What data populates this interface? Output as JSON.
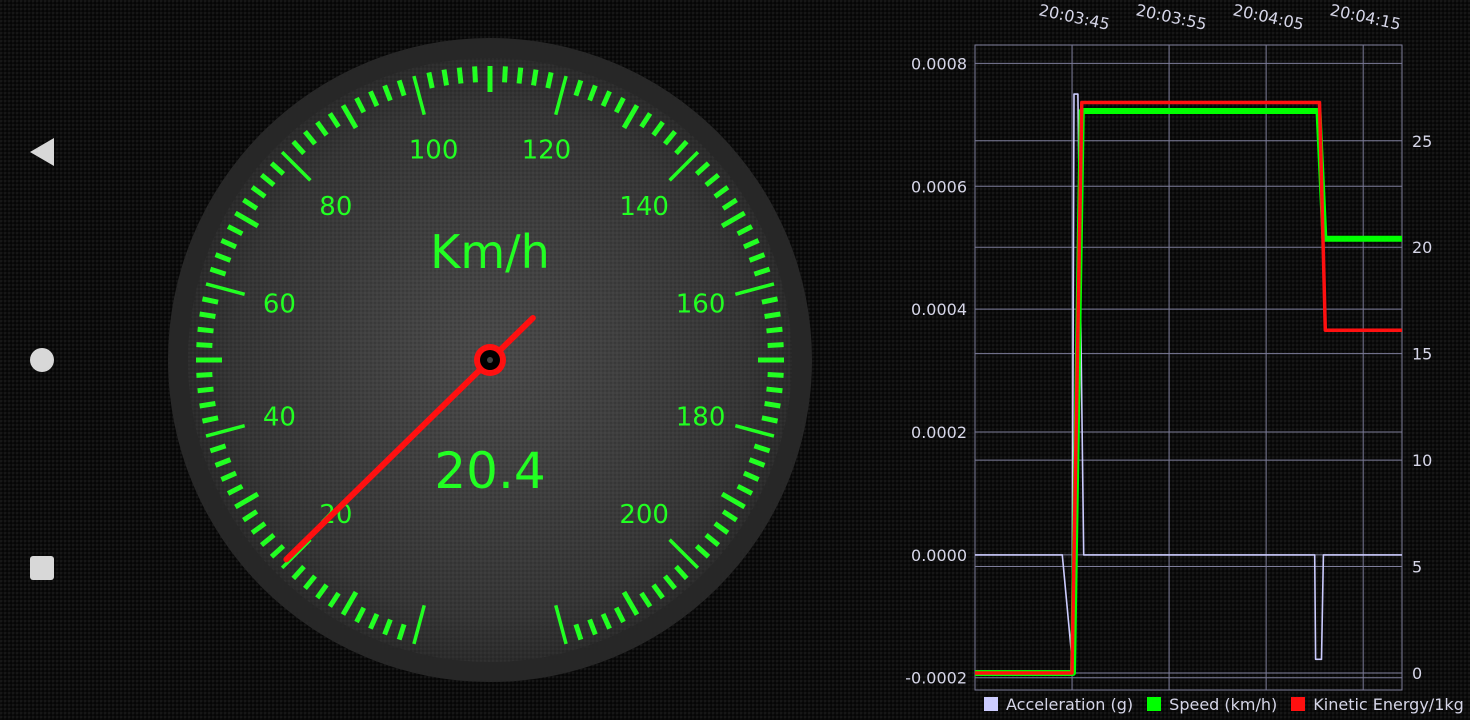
{
  "navigation": {
    "back_icon": "back-triangle-icon",
    "home_icon": "home-circle-icon",
    "recent_icon": "recent-apps-square-icon"
  },
  "speedometer": {
    "unit_label": "Km/h",
    "speed_value": "20.4",
    "needle_value": 20.4,
    "scale_labels": [
      "20",
      "40",
      "60",
      "80",
      "100",
      "120",
      "140",
      "160",
      "180",
      "200"
    ],
    "scale_min": 0,
    "scale_max": 220,
    "colors": {
      "scale": "#22ff22",
      "needle": "#ff1010",
      "dial": "#3a3a3a"
    }
  },
  "chart_data": {
    "type": "line",
    "x_tick_labels": [
      "20:03:45",
      "20:03:55",
      "20:04:05",
      "20:04:15"
    ],
    "left_axis": {
      "ticks": [
        "0.0008",
        "0.0006",
        "0.0004",
        "0.0002",
        "0.0000",
        "-0.0002"
      ],
      "range": [
        -0.00022,
        0.00083
      ]
    },
    "right_axis": {
      "ticks": [
        "25",
        "20",
        "15",
        "10",
        "5",
        "0"
      ],
      "range": [
        -0.8,
        29.5
      ]
    },
    "grid": true,
    "legend_position": "bottom",
    "x_range": [
      "20:03:35",
      "20:04:19"
    ],
    "series": [
      {
        "name": "Acceleration (g)",
        "axis": "left",
        "color": "#ccccff",
        "x": [
          "20:03:35",
          "20:03:44",
          "20:03:45",
          "20:03:45.2",
          "20:03:45.6",
          "20:03:46.2",
          "20:04:10",
          "20:04:10.1",
          "20:04:10.3",
          "20:04:10.7",
          "20:04:10.9",
          "20:04:19"
        ],
        "values": [
          0.0,
          0.0,
          -0.00017,
          0.00075,
          0.00075,
          0.0,
          0.0,
          -0.00017,
          -0.00017,
          -0.00017,
          0.0,
          0.0
        ]
      },
      {
        "name": "Speed (km/h)",
        "axis": "right",
        "color": "#00ff00",
        "x": [
          "20:03:35",
          "20:03:45.1",
          "20:03:46",
          "20:04:10.4",
          "20:04:11",
          "20:04:19"
        ],
        "values": [
          0,
          0,
          26.4,
          26.4,
          20.4,
          20.4
        ]
      },
      {
        "name": "Kinetic Energy/1kg",
        "axis": "right",
        "color": "#ff1010",
        "x": [
          "20:03:35",
          "20:03:45",
          "20:03:46",
          "20:04:10.5",
          "20:04:11.1",
          "20:04:19"
        ],
        "values": [
          0,
          0,
          26.8,
          26.8,
          16.1,
          16.1
        ]
      }
    ]
  },
  "legend": {
    "items": [
      "Acceleration (g)",
      "Speed (km/h)",
      "Kinetic Energy/1kg"
    ],
    "colors": [
      "#ccccff",
      "#00ff00",
      "#ff1010"
    ]
  }
}
